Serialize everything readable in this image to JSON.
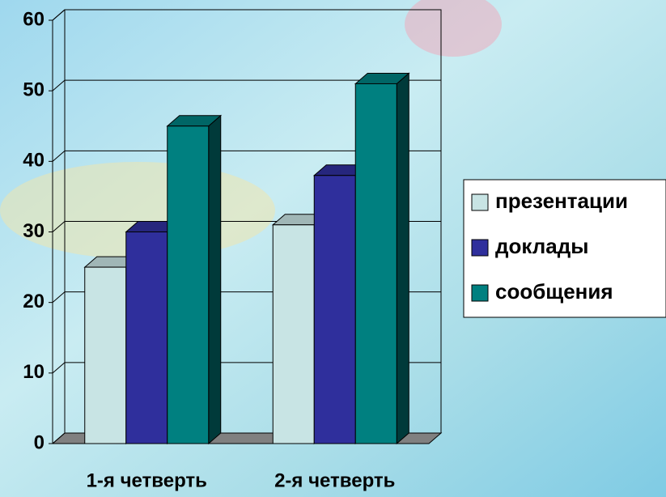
{
  "chart_data": {
    "type": "bar3d",
    "categories": [
      "1-я четверть",
      "2-я четверть"
    ],
    "series": [
      {
        "name": "презентации",
        "color": "#c8e4e4",
        "values": [
          25,
          31
        ]
      },
      {
        "name": "доклады",
        "color": "#2f2f9c",
        "values": [
          30,
          38
        ]
      },
      {
        "name": "сообщения",
        "color": "#008080",
        "values": [
          45,
          51
        ]
      }
    ],
    "ylim": [
      0,
      60
    ],
    "yticks": [
      0,
      10,
      20,
      30,
      40,
      50,
      60
    ],
    "grid": true,
    "legend": "right"
  }
}
